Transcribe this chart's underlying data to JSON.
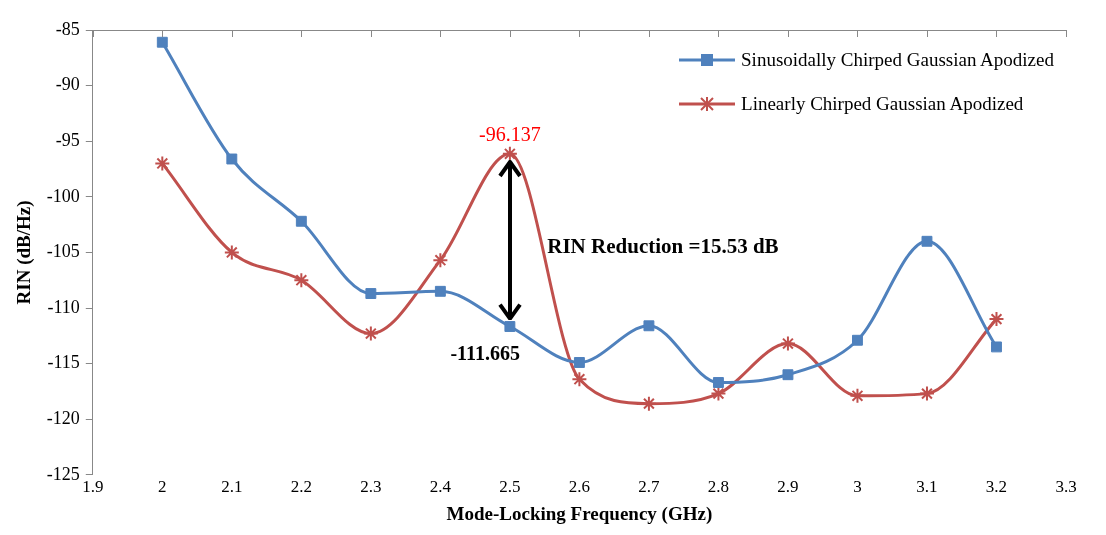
{
  "chart_data": {
    "type": "line",
    "xlabel": "Mode-Locking Frequency (GHz)",
    "ylabel": "RIN (dB/Hz)",
    "x": [
      2,
      2.1,
      2.2,
      2.3,
      2.4,
      2.5,
      2.6,
      2.7,
      2.8,
      2.9,
      3,
      3.1,
      3.2
    ],
    "series": [
      {
        "name": "Sinusoidally Chirped Gaussian Apodized",
        "color": "#4f81bd",
        "marker": "square",
        "values": [
          -86.1,
          -96.6,
          -102.2,
          -108.7,
          -108.5,
          -111.665,
          -114.9,
          -111.6,
          -116.7,
          -116.0,
          -112.9,
          -104.0,
          -113.5
        ]
      },
      {
        "name": "Linearly Chirped Gaussian Apodized",
        "color": "#c0504d",
        "marker": "cross",
        "values": [
          -97.0,
          -105.0,
          -107.5,
          -112.3,
          -105.7,
          -96.137,
          -116.4,
          -118.6,
          -117.7,
          -113.2,
          -117.9,
          -117.7,
          -111.0
        ]
      }
    ],
    "xlim": [
      1.9,
      3.3
    ],
    "xticks": [
      1.9,
      2,
      2.1,
      2.2,
      2.3,
      2.4,
      2.5,
      2.6,
      2.7,
      2.8,
      2.9,
      3,
      3.1,
      3.2,
      3.3
    ],
    "ylim": [
      -125,
      -85
    ],
    "yticks": [
      -125,
      -120,
      -115,
      -110,
      -105,
      -100,
      -95,
      -90,
      -85
    ],
    "grid": false,
    "legend": "top right",
    "annotations": [
      {
        "text": "-96.137",
        "x": 2.5,
        "y": -96.137
      },
      {
        "text": "-111.665",
        "x": 2.5,
        "y": -111.665
      },
      "RIN Reduction =15.53 dB"
    ]
  }
}
